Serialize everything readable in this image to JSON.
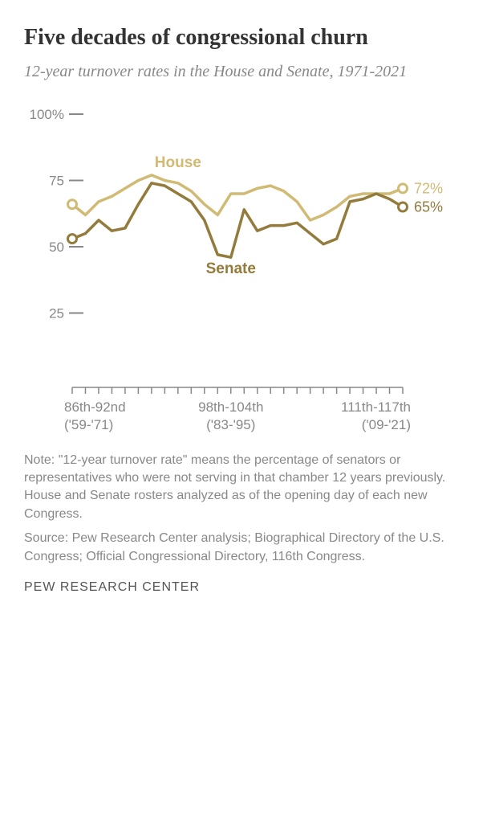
{
  "title": "Five decades of congressional churn",
  "subtitle": "12-year turnover rates in the House and Senate, 1971-2021",
  "chart": {
    "type": "line",
    "background_color": "#ffffff",
    "y_axis": {
      "ticks": [
        25,
        50,
        75,
        100
      ],
      "top_label": "100%",
      "label_color": "#888888",
      "label_fontsize": 17,
      "tick_color": "#888888"
    },
    "x_axis": {
      "labels": [
        {
          "line1": "86th-92nd",
          "line2": "('59-'71)",
          "pos": 0
        },
        {
          "line1": "98th-104th",
          "line2": "('83-'95)",
          "pos": 12
        },
        {
          "line1": "111th-117th",
          "line2": "('09-'21)",
          "pos": 25
        }
      ],
      "tick_count": 26,
      "label_color": "#888888",
      "label_fontsize": 17
    },
    "series": {
      "house": {
        "label": "House",
        "label_pos": {
          "x": 8,
          "y": 80
        },
        "color": "#d1ba73",
        "stroke_width": 3.5,
        "end_value_label": "72%",
        "end_value_color": "#d1ba73",
        "start_marker": true,
        "end_marker": true,
        "values": [
          66,
          62,
          67,
          69,
          72,
          75,
          77,
          75,
          74,
          71,
          66,
          62,
          70,
          70,
          72,
          73,
          71,
          67,
          60,
          62,
          65,
          69,
          70,
          70,
          70,
          72
        ]
      },
      "senate": {
        "label": "Senate",
        "label_pos": {
          "x": 12,
          "y": 40
        },
        "color": "#937b3b",
        "stroke_width": 3.5,
        "end_value_label": "65%",
        "end_value_color": "#937b3b",
        "start_marker": true,
        "end_marker": true,
        "values": [
          53,
          55,
          60,
          56,
          57,
          66,
          74,
          73,
          70,
          67,
          60,
          47,
          46,
          64,
          56,
          58,
          58,
          59,
          55,
          51,
          53,
          67,
          68,
          70,
          68,
          65
        ]
      }
    }
  },
  "note": "Note: \"12-year turnover rate\" means the percentage of senators or representatives who were not serving in that chamber 12 years previously. House and Senate rosters analyzed as of the opening day of each new Congress.",
  "source": "Source: Pew Research Center analysis; Biographical Directory of the U.S. Congress; Official Congressional Directory, 116th Congress.",
  "brand": "PEW RESEARCH CENTER"
}
